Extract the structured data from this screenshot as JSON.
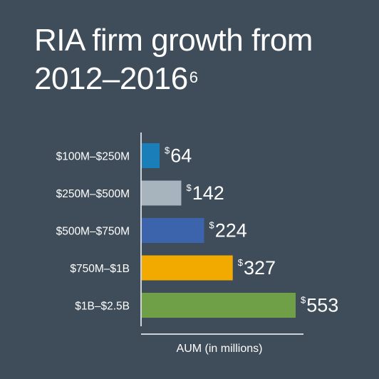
{
  "title_main": "RIA firm growth from 2012–2016",
  "title_footnote": "6",
  "chart_data": {
    "type": "bar",
    "orientation": "horizontal",
    "title": "RIA firm growth from 2012–2016",
    "title_footnote": "6",
    "xlabel": "AUM (in millions)",
    "ylabel": "",
    "categories": [
      "$100M–$250M",
      "$250M–$500M",
      "$500M–$750M",
      "$750M–$1B",
      "$1B–$2.5B"
    ],
    "values": [
      64,
      142,
      224,
      327,
      553
    ],
    "value_labels": [
      {
        "prefix": "$",
        "value": "64"
      },
      {
        "prefix": "$",
        "value": "142"
      },
      {
        "prefix": "$",
        "value": "224"
      },
      {
        "prefix": "$",
        "value": "327"
      },
      {
        "prefix": "$",
        "value": "553"
      }
    ],
    "colors": [
      "#1a7fb8",
      "#a7b3bd",
      "#3b64ad",
      "#f2a900",
      "#6fa047"
    ],
    "xlim": [
      0,
      553
    ],
    "grid": false,
    "legend": "none"
  },
  "colors": {
    "background": "#3f4d5a",
    "text": "#ffffff",
    "axis": "#ffffff"
  }
}
